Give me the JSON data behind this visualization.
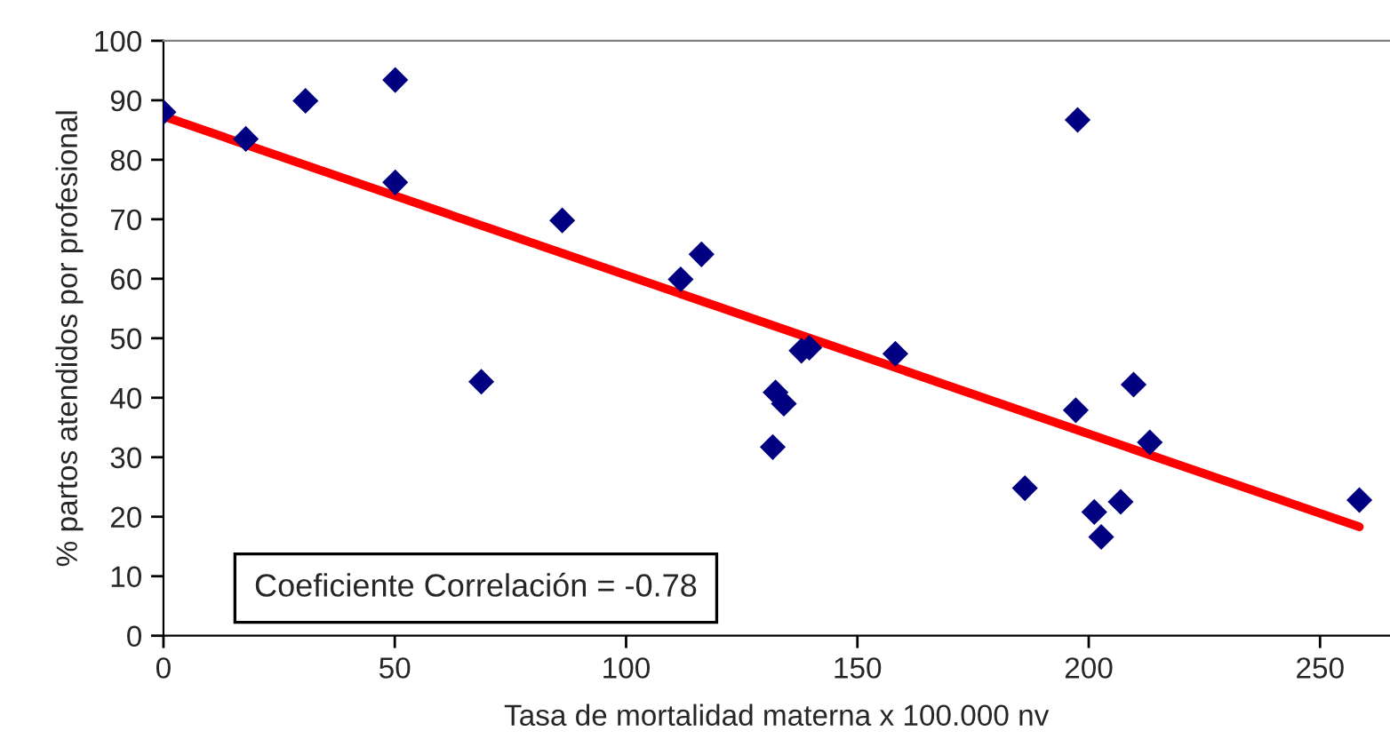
{
  "chart_data": {
    "type": "scatter",
    "xlabel": "Tasa de mortalidad materna x 100.000 nv",
    "ylabel": "% partos atendidos por profesional",
    "xlim": [
      0,
      265
    ],
    "xticks": [
      0,
      50,
      100,
      150,
      200,
      250
    ],
    "ylim": [
      0,
      100
    ],
    "yticks": [
      0,
      10,
      20,
      30,
      40,
      50,
      60,
      70,
      80,
      90,
      100
    ],
    "grid": false,
    "annotations": [
      "Coeficiente Correlación = -0.78"
    ],
    "series": [
      {
        "color": "#000080",
        "marker": "diamond",
        "x": [
          0,
          17.8,
          30.7,
          50.1,
          50.1,
          68.7,
          86.2,
          111.8,
          116.3,
          131.7,
          132.3,
          134.1,
          137.9,
          139.6,
          158.2,
          186.2,
          197.6,
          197.2,
          201.2,
          202.7,
          206.9,
          209.7,
          213.2,
          258.5
        ],
        "values": [
          88.0,
          83.5,
          89.9,
          93.4,
          76.2,
          42.7,
          69.8,
          59.9,
          64.1,
          31.7,
          40.9,
          39.0,
          47.9,
          48.4,
          47.4,
          24.8,
          86.7,
          37.9,
          20.8,
          16.6,
          22.5,
          42.2,
          32.5,
          22.8
        ]
      },
      {
        "type": "line",
        "color": "#ff0000",
        "marker": "none",
        "line_style": "solid",
        "x": [
          0,
          258.5
        ],
        "values": [
          87.3,
          18.3
        ]
      }
    ]
  }
}
